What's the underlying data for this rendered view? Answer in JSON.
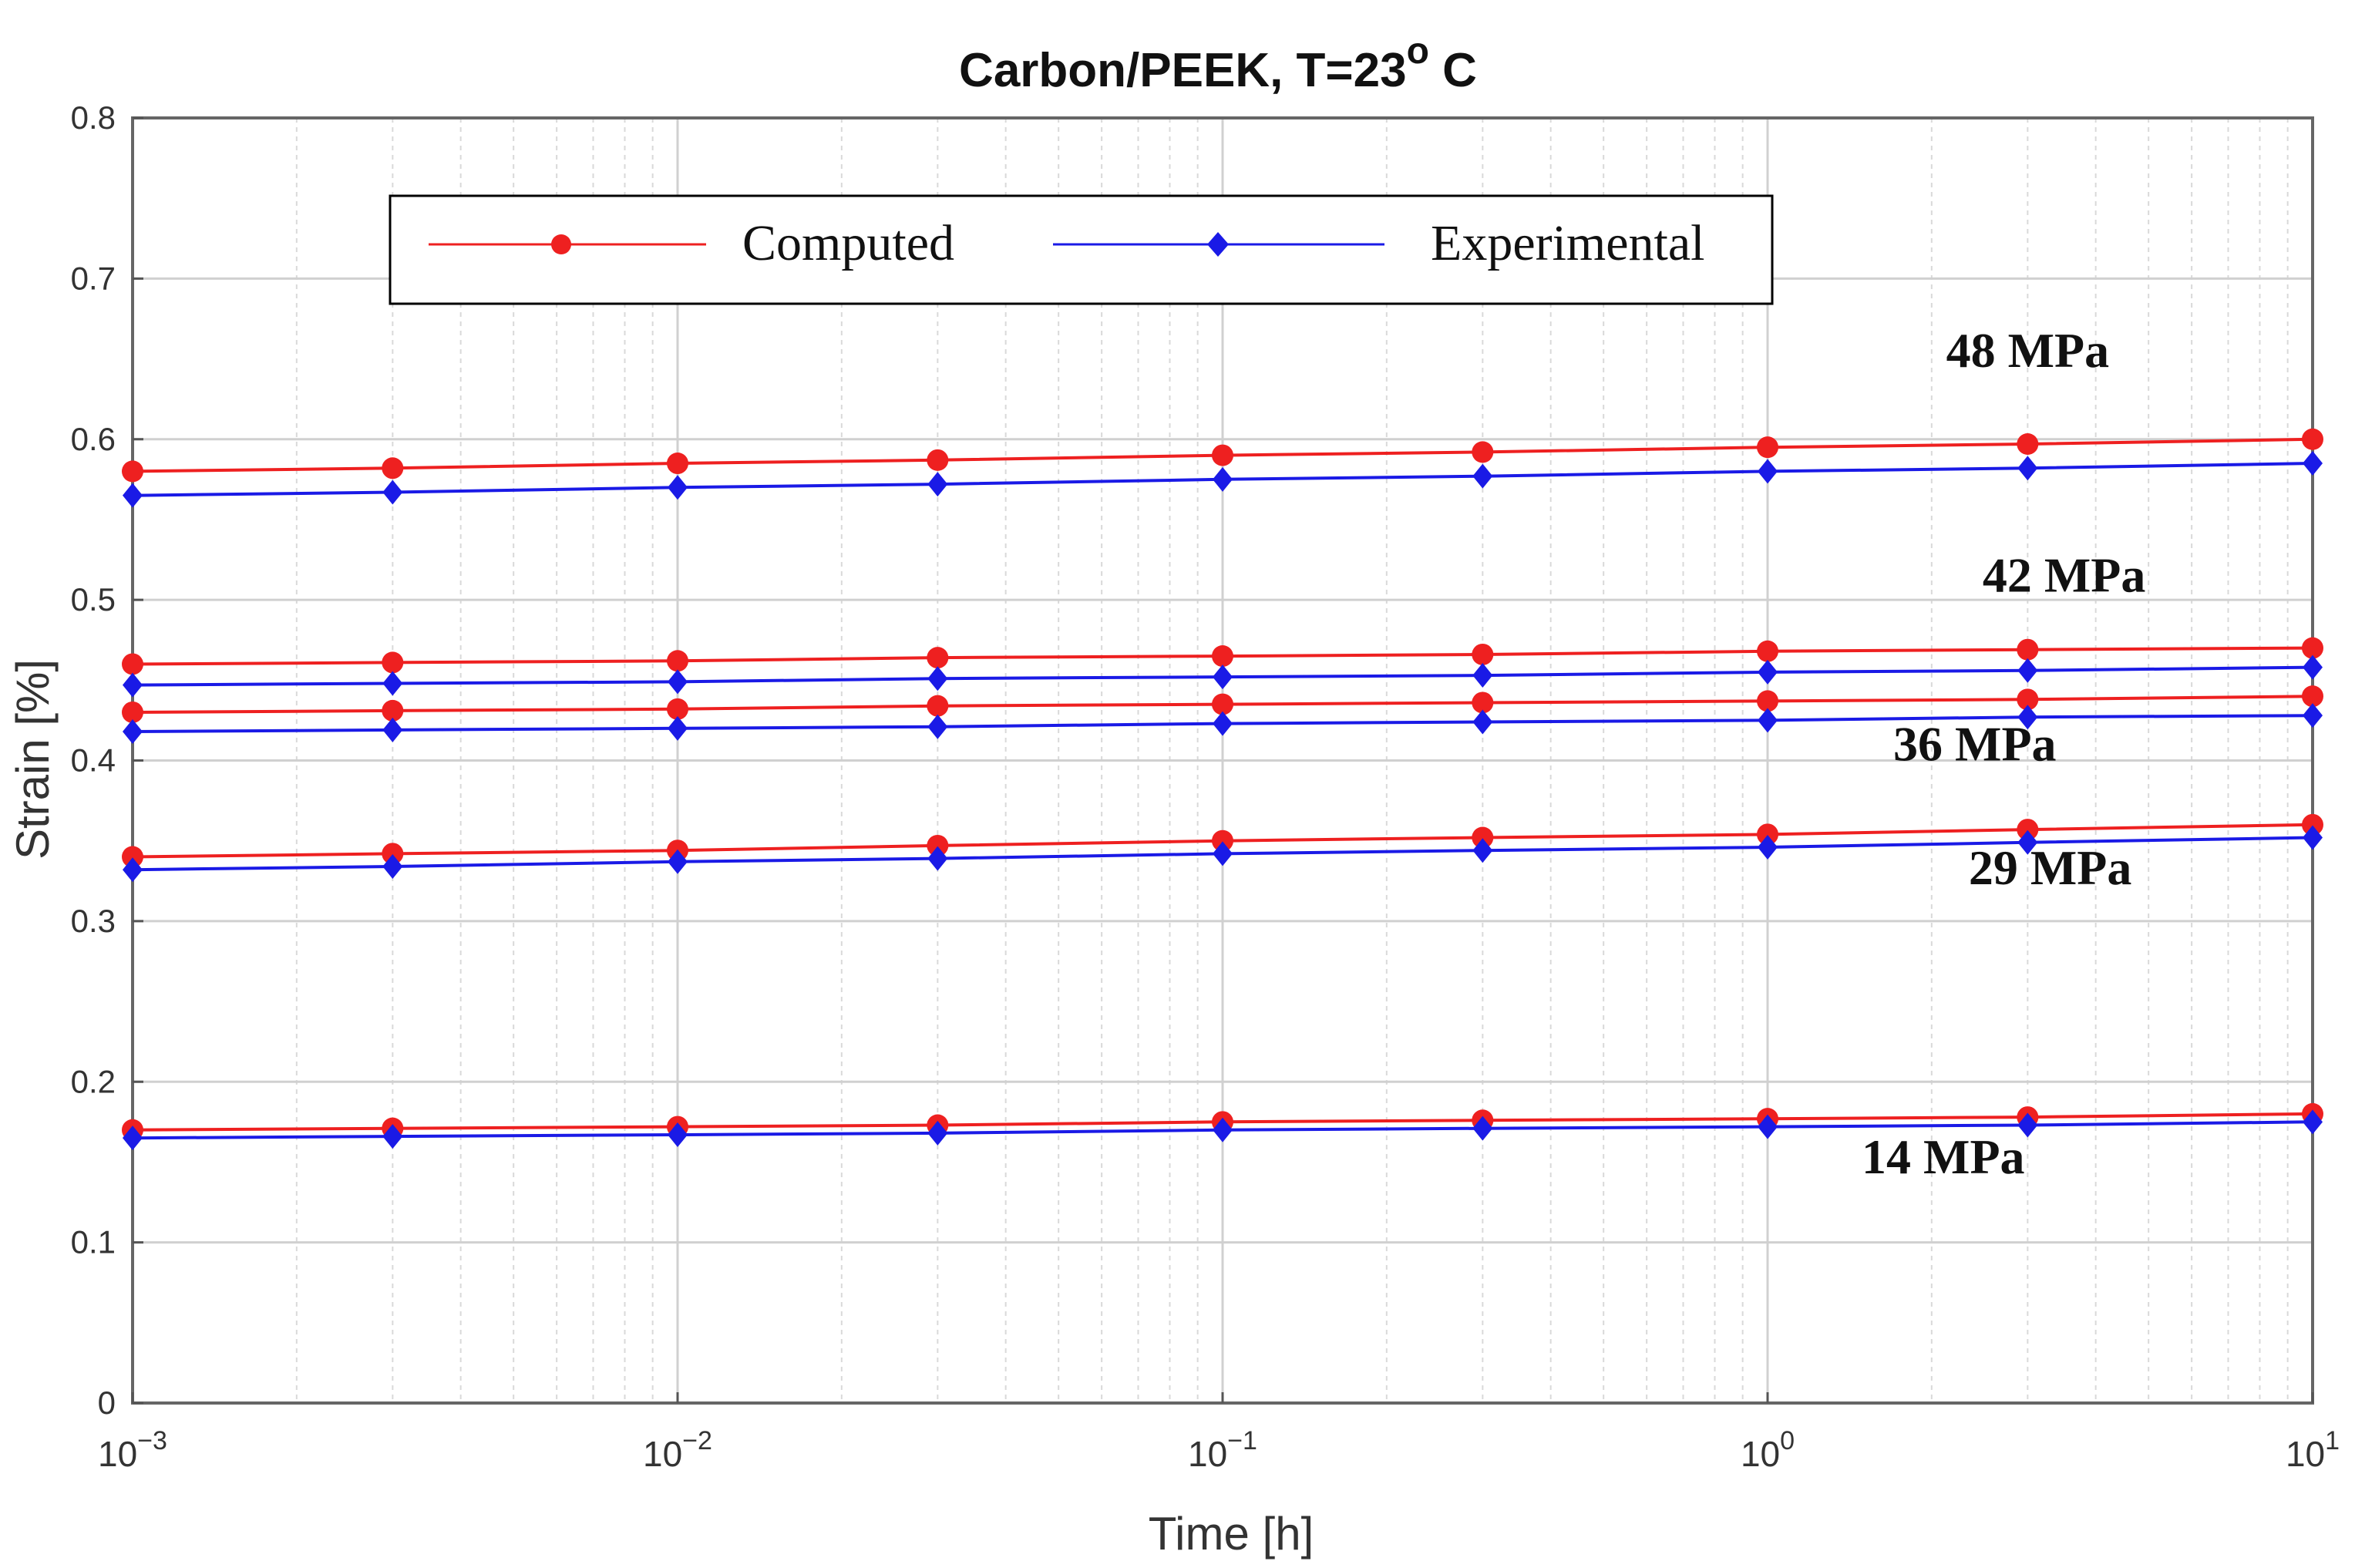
{
  "chart_data": {
    "type": "line",
    "title": "Carbon/PEEK, T=23",
    "title_superscript": "o",
    "title_suffix": " C",
    "xlabel": "Time [h]",
    "ylabel": "Strain [%]",
    "xscale": "log",
    "xlim": [
      0.001,
      10
    ],
    "ylim": [
      0,
      0.8
    ],
    "grid": true,
    "legend_position": "top-left",
    "x_ticks": [
      {
        "value": 0.001,
        "base": "10",
        "exp": "−3"
      },
      {
        "value": 0.01,
        "base": "10",
        "exp": "−2"
      },
      {
        "value": 0.1,
        "base": "10",
        "exp": "−1"
      },
      {
        "value": 1,
        "base": "10",
        "exp": "0"
      },
      {
        "value": 10,
        "base": "10",
        "exp": "1"
      }
    ],
    "y_ticks": [
      {
        "value": 0,
        "label": "0"
      },
      {
        "value": 0.1,
        "label": "0.1"
      },
      {
        "value": 0.2,
        "label": "0.2"
      },
      {
        "value": 0.3,
        "label": "0.3"
      },
      {
        "value": 0.4,
        "label": "0.4"
      },
      {
        "value": 0.5,
        "label": "0.5"
      },
      {
        "value": 0.6,
        "label": "0.6"
      },
      {
        "value": 0.7,
        "label": "0.7"
      },
      {
        "value": 0.8,
        "label": "0.8"
      }
    ],
    "x": [
      0.001,
      0.003,
      0.01,
      0.03,
      0.1,
      0.3,
      1,
      3,
      10
    ],
    "legend": [
      {
        "label": "Computed",
        "color": "#ee2020",
        "marker": "circle"
      },
      {
        "label": "Experimental",
        "color": "#1a1ae6",
        "marker": "diamond"
      }
    ],
    "series": [
      {
        "name": "Computed",
        "stress": "48 MPa",
        "values": [
          0.58,
          0.582,
          0.585,
          0.587,
          0.59,
          0.592,
          0.595,
          0.597,
          0.6
        ]
      },
      {
        "name": "Experimental",
        "stress": "48 MPa",
        "values": [
          0.565,
          0.567,
          0.57,
          0.572,
          0.575,
          0.577,
          0.58,
          0.582,
          0.585
        ]
      },
      {
        "name": "Computed",
        "stress": "42 MPa",
        "values": [
          0.46,
          0.461,
          0.462,
          0.464,
          0.465,
          0.466,
          0.468,
          0.469,
          0.47
        ]
      },
      {
        "name": "Experimental",
        "stress": "42 MPa",
        "values": [
          0.447,
          0.448,
          0.449,
          0.451,
          0.452,
          0.453,
          0.455,
          0.456,
          0.458
        ]
      },
      {
        "name": "Computed",
        "stress": "36 MPa",
        "values": [
          0.43,
          0.431,
          0.432,
          0.434,
          0.435,
          0.436,
          0.437,
          0.438,
          0.44
        ]
      },
      {
        "name": "Experimental",
        "stress": "36 MPa",
        "values": [
          0.418,
          0.419,
          0.42,
          0.421,
          0.423,
          0.424,
          0.425,
          0.427,
          0.428
        ]
      },
      {
        "name": "Computed",
        "stress": "29 MPa",
        "values": [
          0.34,
          0.342,
          0.344,
          0.347,
          0.35,
          0.352,
          0.354,
          0.357,
          0.36
        ]
      },
      {
        "name": "Experimental",
        "stress": "29 MPa",
        "values": [
          0.332,
          0.334,
          0.337,
          0.339,
          0.342,
          0.344,
          0.346,
          0.349,
          0.352
        ]
      },
      {
        "name": "Computed",
        "stress": "14 MPa",
        "values": [
          0.17,
          0.171,
          0.172,
          0.173,
          0.175,
          0.176,
          0.177,
          0.178,
          0.18
        ]
      },
      {
        "name": "Experimental",
        "stress": "14 MPa",
        "values": [
          0.165,
          0.166,
          0.167,
          0.168,
          0.17,
          0.171,
          0.172,
          0.173,
          0.175
        ]
      }
    ],
    "annotations": [
      {
        "text": "48 MPa",
        "x": 3,
        "y": 0.645
      },
      {
        "text": "42 MPa",
        "x": 3.5,
        "y": 0.505
      },
      {
        "text": "36 MPa",
        "x": 2.4,
        "y": 0.4
      },
      {
        "text": "29 MPa",
        "x": 3.3,
        "y": 0.323
      },
      {
        "text": "14 MPa",
        "x": 2.1,
        "y": 0.143
      }
    ]
  }
}
